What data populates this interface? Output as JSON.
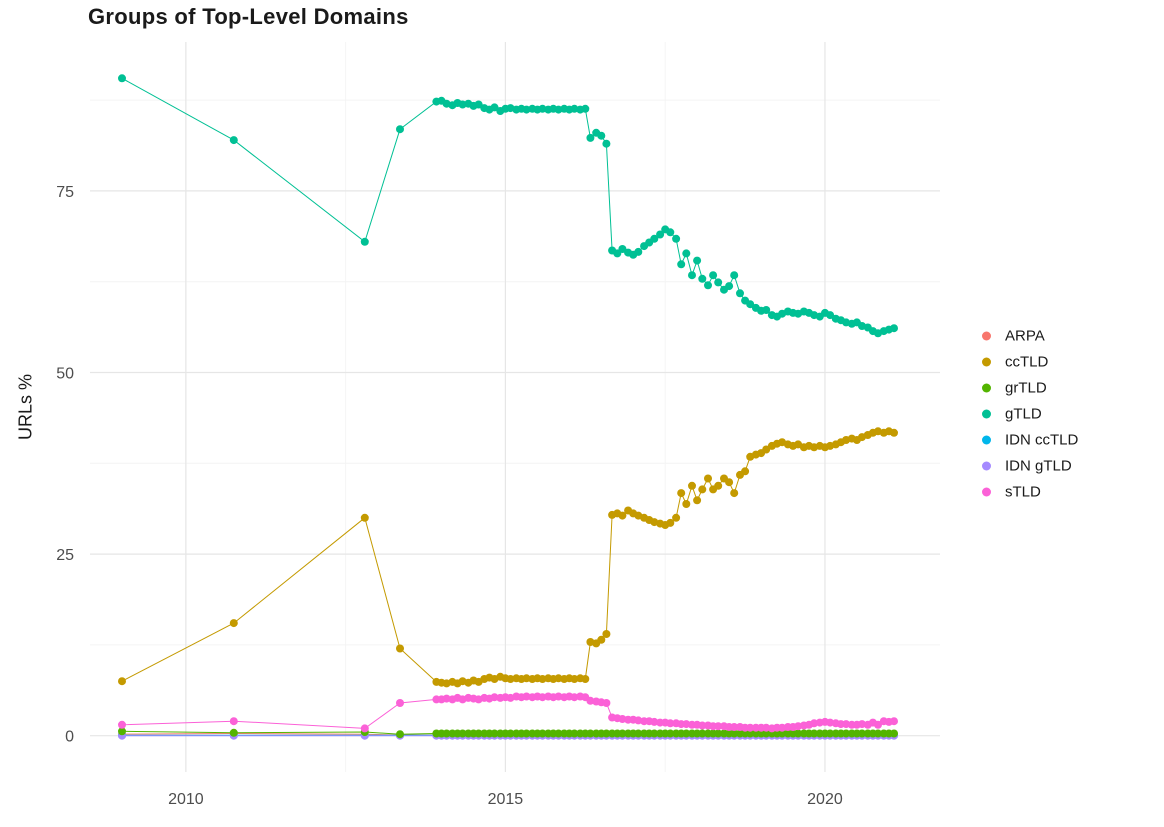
{
  "figure": {
    "title": "Groups of Top-Level Domains",
    "y_axis_label": "URLs %"
  },
  "chart_data": {
    "type": "line",
    "title": "Groups of Top-Level Domains",
    "xlabel": "",
    "ylabel": "URLs %",
    "grid": "major+minor",
    "legend_position": "right",
    "x_ticks": [
      "2010",
      "2015",
      "2020"
    ],
    "x_tick_values": [
      2010,
      2015,
      2020
    ],
    "y_ticks": [
      "0",
      "25",
      "50",
      "75"
    ],
    "y_tick_values": [
      0,
      25,
      50,
      75
    ],
    "x_minor": [
      2012.5,
      2017.5
    ],
    "y_minor": [
      12.5,
      37.5,
      62.5,
      87.5
    ],
    "xlim": [
      2008.5,
      2021.8
    ],
    "ylim": [
      -5,
      95.5
    ],
    "x": [
      2009,
      2010.75,
      2012.8,
      2013.35,
      2013.92,
      2014,
      2014.08,
      2014.17,
      2014.25,
      2014.33,
      2014.42,
      2014.5,
      2014.58,
      2014.67,
      2014.75,
      2014.83,
      2014.92,
      2015,
      2015.08,
      2015.17,
      2015.25,
      2015.33,
      2015.42,
      2015.5,
      2015.58,
      2015.67,
      2015.75,
      2015.83,
      2015.92,
      2016,
      2016.08,
      2016.17,
      2016.25,
      2016.33,
      2016.42,
      2016.5,
      2016.58,
      2016.67,
      2016.75,
      2016.83,
      2016.92,
      2017,
      2017.08,
      2017.17,
      2017.25,
      2017.33,
      2017.42,
      2017.5,
      2017.58,
      2017.67,
      2017.75,
      2017.83,
      2017.92,
      2018,
      2018.08,
      2018.17,
      2018.25,
      2018.33,
      2018.42,
      2018.5,
      2018.58,
      2018.67,
      2018.75,
      2018.83,
      2018.92,
      2019,
      2019.08,
      2019.17,
      2019.25,
      2019.33,
      2019.42,
      2019.5,
      2019.58,
      2019.67,
      2019.75,
      2019.83,
      2019.92,
      2020,
      2020.08,
      2020.17,
      2020.25,
      2020.33,
      2020.42,
      2020.5,
      2020.58,
      2020.67,
      2020.75,
      2020.83,
      2020.92,
      2021,
      2021.08
    ],
    "series": [
      {
        "name": "ARPA",
        "color": "#F8766D",
        "values": [
          0.2,
          0.3,
          0.2,
          0.1,
          0.1,
          0.1,
          0.1,
          0.1,
          0.1,
          0.1,
          0.1,
          0.1,
          0.1,
          0.1,
          0.1,
          0.1,
          0.1,
          0.1,
          0.1,
          0.1,
          0.1,
          0.1,
          0.1,
          0.1,
          0.1,
          0.1,
          0.1,
          0.1,
          0.1,
          0.1,
          0.1,
          0.1,
          0.1,
          0.1,
          0.1,
          0.1,
          0.1,
          0.1,
          0.1,
          0.1,
          0.1,
          0.1,
          0.1,
          0.1,
          0.1,
          0.1,
          0.1,
          0.1,
          0.1,
          0.1,
          0.1,
          0.1,
          0.1,
          0.1,
          0.1,
          0.1,
          0.1,
          0.1,
          0.1,
          0.1,
          0.1,
          0.1,
          0.1,
          0.1,
          0.1,
          0.1,
          0.1,
          0.1,
          0.1,
          0.1,
          0.1,
          0.1,
          0.1,
          0.1,
          0.1,
          0.1,
          0.1,
          0.1,
          0.1,
          0.1,
          0.1,
          0.1,
          0.1,
          0.1,
          0.1,
          0.1,
          0.1,
          0.1,
          0.1,
          0.1,
          0.1
        ]
      },
      {
        "name": "ccTLD",
        "color": "#C49A00",
        "values": [
          7.5,
          15.5,
          30,
          12,
          7.4,
          7.3,
          7.2,
          7.4,
          7.2,
          7.5,
          7.3,
          7.6,
          7.4,
          7.8,
          8.0,
          7.8,
          8.1,
          7.9,
          7.8,
          7.9,
          7.8,
          7.9,
          7.8,
          7.9,
          7.8,
          7.9,
          7.8,
          7.9,
          7.8,
          7.9,
          7.8,
          7.9,
          7.8,
          12.9,
          12.7,
          13.2,
          14.0,
          30.4,
          30.6,
          30.3,
          31.0,
          30.6,
          30.3,
          30.0,
          29.7,
          29.4,
          29.2,
          29.0,
          29.3,
          30.0,
          33.4,
          31.9,
          34.4,
          32.4,
          33.9,
          35.4,
          33.9,
          34.4,
          35.4,
          34.9,
          33.4,
          35.9,
          36.4,
          38.4,
          38.7,
          38.9,
          39.4,
          39.9,
          40.2,
          40.4,
          40.1,
          39.9,
          40.1,
          39.7,
          39.9,
          39.7,
          39.9,
          39.7,
          39.9,
          40.1,
          40.4,
          40.7,
          40.9,
          40.7,
          41.1,
          41.4,
          41.7,
          41.9,
          41.7,
          41.9,
          41.7
        ]
      },
      {
        "name": "grTLD",
        "color": "#53B400",
        "values": [
          0.6,
          0.4,
          0.5,
          0.2,
          0.3,
          0.3,
          0.3,
          0.3,
          0.3,
          0.3,
          0.3,
          0.3,
          0.3,
          0.3,
          0.3,
          0.3,
          0.3,
          0.3,
          0.3,
          0.3,
          0.3,
          0.3,
          0.3,
          0.3,
          0.3,
          0.3,
          0.3,
          0.3,
          0.3,
          0.3,
          0.3,
          0.3,
          0.3,
          0.3,
          0.3,
          0.3,
          0.3,
          0.3,
          0.3,
          0.3,
          0.3,
          0.3,
          0.3,
          0.3,
          0.3,
          0.3,
          0.3,
          0.3,
          0.3,
          0.3,
          0.3,
          0.3,
          0.3,
          0.3,
          0.3,
          0.3,
          0.3,
          0.3,
          0.3,
          0.3,
          0.3,
          0.3,
          0.3,
          0.3,
          0.3,
          0.3,
          0.3,
          0.3,
          0.3,
          0.3,
          0.3,
          0.3,
          0.3,
          0.3,
          0.3,
          0.3,
          0.3,
          0.3,
          0.3,
          0.3,
          0.3,
          0.3,
          0.3,
          0.3,
          0.3,
          0.3,
          0.3,
          0.3,
          0.3,
          0.3,
          0.3
        ]
      },
      {
        "name": "gTLD",
        "color": "#00C094",
        "values": [
          90.5,
          82,
          68,
          83.5,
          87.3,
          87.4,
          87.0,
          86.8,
          87.1,
          86.9,
          87.0,
          86.7,
          86.9,
          86.4,
          86.2,
          86.5,
          86.0,
          86.3,
          86.4,
          86.2,
          86.3,
          86.2,
          86.3,
          86.2,
          86.3,
          86.2,
          86.3,
          86.2,
          86.3,
          86.2,
          86.3,
          86.2,
          86.3,
          82.3,
          83.0,
          82.6,
          81.5,
          66.8,
          66.4,
          67.0,
          66.5,
          66.2,
          66.6,
          67.4,
          67.9,
          68.4,
          69.0,
          69.7,
          69.3,
          68.4,
          64.9,
          66.4,
          63.4,
          65.4,
          62.9,
          62.0,
          63.4,
          62.4,
          61.4,
          61.9,
          63.4,
          60.9,
          59.9,
          59.4,
          58.9,
          58.5,
          58.6,
          57.9,
          57.7,
          58.1,
          58.4,
          58.2,
          58.1,
          58.4,
          58.2,
          57.9,
          57.7,
          58.2,
          57.9,
          57.4,
          57.2,
          56.9,
          56.7,
          56.9,
          56.4,
          56.2,
          55.7,
          55.4,
          55.7,
          55.9,
          56.1
        ]
      },
      {
        "name": "IDN ccTLD",
        "color": "#00B6EB",
        "values": [
          0.05,
          0.05,
          0.05,
          0.05,
          0.05,
          0.05,
          0.05,
          0.05,
          0.05,
          0.05,
          0.05,
          0.05,
          0.05,
          0.05,
          0.05,
          0.05,
          0.05,
          0.05,
          0.05,
          0.05,
          0.05,
          0.05,
          0.05,
          0.05,
          0.05,
          0.05,
          0.05,
          0.05,
          0.05,
          0.05,
          0.05,
          0.05,
          0.05,
          0.05,
          0.05,
          0.05,
          0.05,
          0.05,
          0.05,
          0.05,
          0.05,
          0.05,
          0.05,
          0.05,
          0.05,
          0.05,
          0.05,
          0.05,
          0.05,
          0.05,
          0.05,
          0.05,
          0.05,
          0.05,
          0.05,
          0.05,
          0.05,
          0.05,
          0.05,
          0.05,
          0.05,
          0.05,
          0.05,
          0.05,
          0.05,
          0.05,
          0.05,
          0.05,
          0.05,
          0.05,
          0.05,
          0.05,
          0.05,
          0.05,
          0.05,
          0.05,
          0.05,
          0.05,
          0.05,
          0.05,
          0.05,
          0.05,
          0.05,
          0.05,
          0.05,
          0.05,
          0.05,
          0.05,
          0.05,
          0.05,
          0.05
        ]
      },
      {
        "name": "IDN gTLD",
        "color": "#A58AFF",
        "values": [
          0,
          0,
          0,
          0,
          0,
          0,
          0,
          0,
          0,
          0,
          0,
          0,
          0,
          0,
          0,
          0,
          0,
          0,
          0,
          0,
          0,
          0,
          0,
          0,
          0,
          0,
          0,
          0,
          0,
          0,
          0,
          0,
          0,
          0,
          0,
          0,
          0,
          0,
          0,
          0,
          0,
          0,
          0,
          0,
          0,
          0,
          0,
          0,
          0,
          0,
          0,
          0,
          0,
          0,
          0,
          0,
          0,
          0,
          0,
          0,
          0,
          0,
          0,
          0,
          0,
          0,
          0,
          0,
          0,
          0,
          0,
          0,
          0,
          0,
          0,
          0,
          0,
          0,
          0,
          0,
          0,
          0,
          0,
          0,
          0,
          0,
          0,
          0,
          0,
          0,
          0
        ]
      },
      {
        "name": "sTLD",
        "color": "#FB61D7",
        "values": [
          1.5,
          2.0,
          1.0,
          4.5,
          5.0,
          5.0,
          5.1,
          5.0,
          5.2,
          5.0,
          5.2,
          5.1,
          5.0,
          5.2,
          5.1,
          5.3,
          5.2,
          5.3,
          5.2,
          5.4,
          5.3,
          5.4,
          5.3,
          5.4,
          5.3,
          5.4,
          5.3,
          5.4,
          5.3,
          5.4,
          5.3,
          5.4,
          5.3,
          4.8,
          4.7,
          4.6,
          4.5,
          2.5,
          2.4,
          2.3,
          2.2,
          2.2,
          2.1,
          2.0,
          2.0,
          1.9,
          1.8,
          1.8,
          1.7,
          1.7,
          1.6,
          1.6,
          1.5,
          1.5,
          1.4,
          1.4,
          1.3,
          1.3,
          1.3,
          1.2,
          1.2,
          1.2,
          1.1,
          1.1,
          1.1,
          1.1,
          1.1,
          1.0,
          1.1,
          1.1,
          1.2,
          1.2,
          1.3,
          1.4,
          1.5,
          1.7,
          1.8,
          1.9,
          1.8,
          1.7,
          1.6,
          1.6,
          1.5,
          1.5,
          1.6,
          1.5,
          1.8,
          1.5,
          2.0,
          1.9,
          2.0
        ]
      }
    ]
  }
}
